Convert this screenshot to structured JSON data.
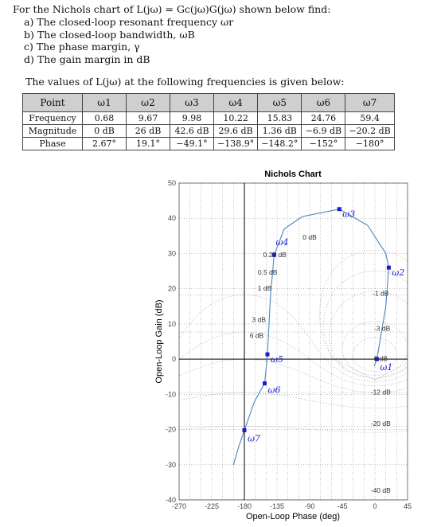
{
  "intro_text": "For the Nichols chart of L(jω) = Gc(jω)G(jω) shown below find:",
  "questions": [
    "a)  The closed-loop resonant frequency ωr",
    "b)  The closed-loop bandwidth, ωB",
    "c)  The phase margin, γ",
    "d)  The gain margin in dB"
  ],
  "table_title": "The values of L(jω) at the following frequencies is given below:",
  "table": {
    "header": [
      "Point",
      "ω1",
      "ω2",
      "ω3",
      "ω4",
      "ω5",
      "ω6",
      "ω7"
    ],
    "rows": [
      [
        "Frequency",
        "0.68",
        "9.67",
        "9.98",
        "10.22",
        "15.83",
        "24.76",
        "59.4"
      ],
      [
        "Magnitude",
        "0 dB",
        "26 dB",
        "42.6 dB",
        "29.6 dB",
        "1.36 dB",
        "−6.9 dB",
        "−20.2 dB"
      ],
      [
        "Phase",
        "2.67°",
        "19.1°",
        "−49.1°",
        "−138.9°",
        "−148.2°",
        "−152°",
        "−180°"
      ]
    ]
  },
  "chart_data": {
    "type": "line",
    "title": "Nichols Chart",
    "xlabel": "Open-Loop Phase (deg)",
    "ylabel": "Open-Loop Gain (dB)",
    "xlim": [
      -270,
      45
    ],
    "ylim": [
      -40,
      50
    ],
    "x_ticks": [
      "-270",
      "-225",
      "-180",
      "-135",
      "-90",
      "-45",
      "0",
      "45"
    ],
    "y_ticks": [
      "-40",
      "-30",
      "-20",
      "-10",
      "0",
      "10",
      "20",
      "30",
      "40",
      "50"
    ],
    "grid": true,
    "curve": [
      {
        "x": -195,
        "y": -30
      },
      {
        "x": -188,
        "y": -25
      },
      {
        "x": -180,
        "y": -20.2
      },
      {
        "x": -166,
        "y": -12
      },
      {
        "x": -152,
        "y": -6.9
      },
      {
        "x": -148.2,
        "y": 1.36
      },
      {
        "x": -144,
        "y": 18
      },
      {
        "x": -138.9,
        "y": 29.6
      },
      {
        "x": -125,
        "y": 37
      },
      {
        "x": -100,
        "y": 40.5
      },
      {
        "x": -49.1,
        "y": 42.6
      },
      {
        "x": -10,
        "y": 38
      },
      {
        "x": 15,
        "y": 30
      },
      {
        "x": 19.1,
        "y": 26
      },
      {
        "x": 15,
        "y": 15
      },
      {
        "x": 6,
        "y": 4
      },
      {
        "x": 2.67,
        "y": 0
      },
      {
        "x": -1,
        "y": -2
      }
    ],
    "points": [
      {
        "label": "ω3",
        "x": -49.1,
        "y": 42.6
      },
      {
        "label": "ω4",
        "x": -138.9,
        "y": 29.6
      },
      {
        "label": "ω2",
        "x": 19.1,
        "y": 26
      },
      {
        "label": "ω5",
        "x": -148.2,
        "y": 1.36
      },
      {
        "label": "ω1",
        "x": 2.67,
        "y": 0
      },
      {
        "label": "ω6",
        "x": -152,
        "y": -6.9
      },
      {
        "label": "ω7",
        "x": -180,
        "y": -20.2
      }
    ],
    "contour_labels": [
      {
        "text": "0 dB",
        "x": -90,
        "y": 34
      },
      {
        "text": "0.25 dB",
        "x": -138,
        "y": 29
      },
      {
        "text": "0.5 dB",
        "x": -148,
        "y": 24
      },
      {
        "text": "1 dB",
        "x": -152,
        "y": 19.5
      },
      {
        "text": "3 dB",
        "x": -160,
        "y": 10.5
      },
      {
        "text": "6 dB",
        "x": -163,
        "y": 6
      },
      {
        "text": "-1 dB",
        "x": 8,
        "y": 18
      },
      {
        "text": "-3 dB",
        "x": 10,
        "y": 8
      },
      {
        "text": "6 dB",
        "x": 8,
        "y": -0.5
      },
      {
        "text": "-12 dB",
        "x": 8,
        "y": -10
      },
      {
        "text": "-20 dB",
        "x": 8,
        "y": -19
      },
      {
        "text": "-40 dB",
        "x": 8,
        "y": -38
      }
    ]
  }
}
